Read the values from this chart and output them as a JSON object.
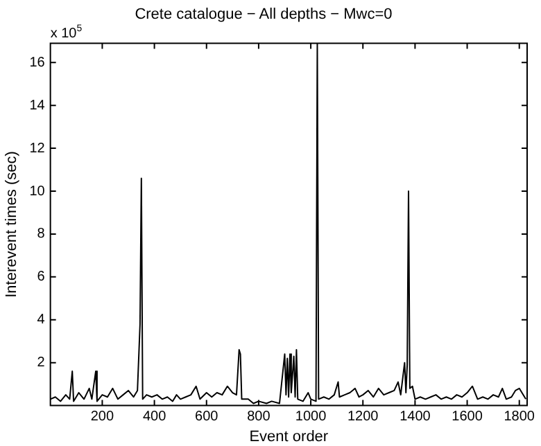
{
  "chart_data": {
    "type": "line",
    "title": "Crete catalogue − All depths − Mwc=0",
    "xlabel": "Event order",
    "ylabel": "Interevent times (sec)",
    "annotations": [
      "x 10$^{5}$"
    ],
    "x": [
      1,
      20,
      40,
      60,
      75,
      85,
      90,
      110,
      130,
      150,
      160,
      175,
      180,
      200,
      220,
      240,
      260,
      280,
      300,
      320,
      335,
      345,
      350,
      355,
      370,
      390,
      410,
      430,
      450,
      470,
      485,
      500,
      520,
      540,
      560,
      575,
      600,
      620,
      640,
      660,
      680,
      700,
      715,
      725,
      730,
      735,
      760,
      780,
      800,
      830,
      850,
      880,
      900,
      905,
      910,
      915,
      920,
      925,
      935,
      940,
      945,
      950,
      970,
      990,
      1000,
      1020,
      1025,
      1030,
      1050,
      1070,
      1090,
      1105,
      1110,
      1130,
      1150,
      1170,
      1185,
      1200,
      1220,
      1240,
      1260,
      1280,
      1300,
      1320,
      1335,
      1345,
      1360,
      1365,
      1370,
      1375,
      1380,
      1390,
      1400,
      1420,
      1440,
      1460,
      1480,
      1500,
      1520,
      1540,
      1560,
      1580,
      1600,
      1620,
      1640,
      1660,
      1680,
      1700,
      1720,
      1735,
      1750,
      1770,
      1785,
      1800,
      1825
    ],
    "series": [
      {
        "color": "#000000",
        "values": [
          0.3,
          0.4,
          0.2,
          0.5,
          0.3,
          1.6,
          0.2,
          0.6,
          0.3,
          0.8,
          0.3,
          1.6,
          0.2,
          0.5,
          0.4,
          0.8,
          0.3,
          0.5,
          0.7,
          0.4,
          0.7,
          3.8,
          10.6,
          0.3,
          0.5,
          0.4,
          0.5,
          0.3,
          0.4,
          0.2,
          0.5,
          0.3,
          0.4,
          0.5,
          0.9,
          0.3,
          0.6,
          0.4,
          0.6,
          0.5,
          0.9,
          0.6,
          0.5,
          2.6,
          2.4,
          0.3,
          0.3,
          0.1,
          0.2,
          0.1,
          0.2,
          0.1,
          2.4,
          0.5,
          2.2,
          0.4,
          2.4,
          0.6,
          2.3,
          0.4,
          2.6,
          0.3,
          0.2,
          0.6,
          0.3,
          0.2,
          16.9,
          0.3,
          0.4,
          0.3,
          0.5,
          1.1,
          0.4,
          0.5,
          0.6,
          0.8,
          0.4,
          0.5,
          0.7,
          0.4,
          0.8,
          0.5,
          0.6,
          0.7,
          1.1,
          0.5,
          2.0,
          0.6,
          1.9,
          10.0,
          0.8,
          0.9,
          0.3,
          0.4,
          0.3,
          0.4,
          0.5,
          0.3,
          0.4,
          0.3,
          0.5,
          0.4,
          0.6,
          0.9,
          0.3,
          0.4,
          0.3,
          0.5,
          0.4,
          0.8,
          0.3,
          0.4,
          0.7,
          0.8,
          0.3
        ]
      }
    ],
    "xlim": [
      1,
      1830
    ],
    "xticks": [
      200,
      400,
      600,
      800,
      1000,
      1200,
      1400,
      1600,
      1800
    ],
    "ylim": [
      0,
      16.9
    ],
    "yticks": [
      2,
      4,
      6,
      8,
      10,
      12,
      14,
      16
    ],
    "grid": false,
    "legend": false,
    "marker": "none",
    "line_style": "solid"
  }
}
